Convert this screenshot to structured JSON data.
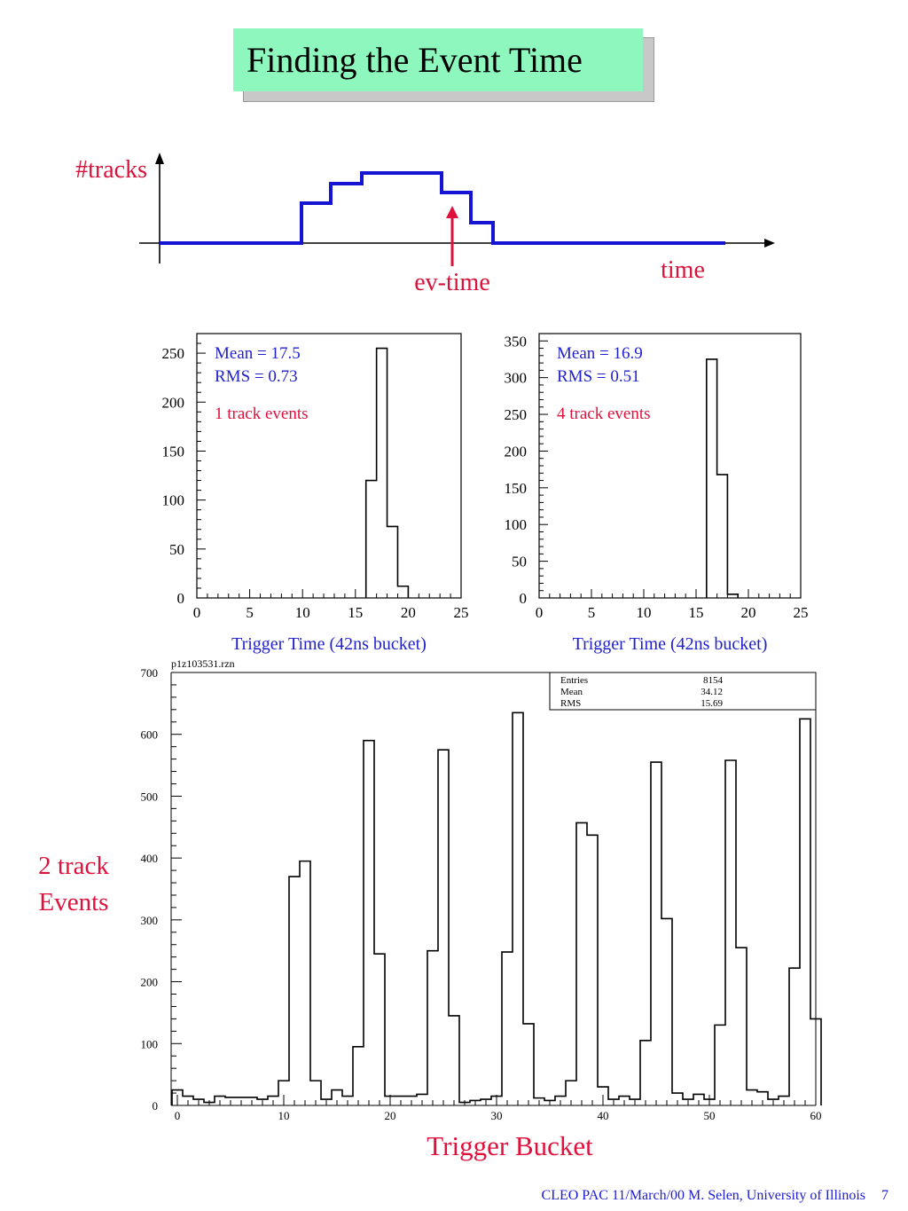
{
  "slide": {
    "title": "Finding the Event Time",
    "title_bg": "#8ef7bd",
    "footer": "CLEO PAC  11/March/00  M. Selen, University of Illinois",
    "page_number": "7"
  },
  "schematic": {
    "y_label": "#tracks",
    "x_label": "time",
    "marker_label": "ev-time",
    "colors": {
      "step": "#1414d2",
      "marker": "#e0103c",
      "label": "#d8123a"
    }
  },
  "chart_data": [
    {
      "type": "bar",
      "xlabel": "Trigger Time (42ns bucket)",
      "ylabel": "",
      "xlim": [
        0,
        25
      ],
      "ylim": [
        0,
        270
      ],
      "x_ticks": [
        0,
        5,
        10,
        15,
        20,
        25
      ],
      "y_ticks": [
        0,
        50,
        100,
        150,
        200,
        250
      ],
      "x": [
        16,
        17,
        18,
        19
      ],
      "values": [
        120,
        255,
        73,
        12
      ],
      "bin_width": 1,
      "annotations": [
        {
          "text": "Mean = 17.5",
          "color": "#1f1fd0"
        },
        {
          "text": "RMS  = 0.73",
          "color": "#1f1fd0"
        },
        {
          "text": "1 track events",
          "color": "#e0103c"
        }
      ]
    },
    {
      "type": "bar",
      "xlabel": "Trigger Time (42ns bucket)",
      "ylabel": "",
      "xlim": [
        0,
        25
      ],
      "ylim": [
        0,
        360
      ],
      "x_ticks": [
        0,
        5,
        10,
        15,
        20,
        25
      ],
      "y_ticks": [
        0,
        50,
        100,
        150,
        200,
        250,
        300,
        350
      ],
      "x": [
        16,
        17,
        18
      ],
      "values": [
        325,
        168,
        5
      ],
      "bin_width": 1,
      "annotations": [
        {
          "text": "Mean = 16.9",
          "color": "#1f1fd0"
        },
        {
          "text": "RMS  = 0.51",
          "color": "#1f1fd0"
        },
        {
          "text": "4 track events",
          "color": "#e0103c"
        }
      ]
    },
    {
      "type": "bar",
      "title": "p1z103531.rzn",
      "xlabel": "Trigger Bucket",
      "ylabel": "2 track Events",
      "xlim": [
        0,
        60
      ],
      "ylim": [
        0,
        700
      ],
      "x_ticks": [
        0,
        10,
        20,
        30,
        40,
        50,
        60
      ],
      "y_ticks": [
        0,
        100,
        200,
        300,
        400,
        500,
        600,
        700
      ],
      "bin_width": 1,
      "x": [
        -0.5,
        0.5,
        1.5,
        2.5,
        3.5,
        4.5,
        5.5,
        6.5,
        7.5,
        8.5,
        9.5,
        10.5,
        11.5,
        12.5,
        13.5,
        14.5,
        15.5,
        16.5,
        17.5,
        18.5,
        19.5,
        20.5,
        21.5,
        22.5,
        23.5,
        24.5,
        25.5,
        26.5,
        27.5,
        28.5,
        29.5,
        30.5,
        31.5,
        32.5,
        33.5,
        34.5,
        35.5,
        36.5,
        37.5,
        38.5,
        39.5,
        40.5,
        41.5,
        42.5,
        43.5,
        44.5,
        45.5,
        46.5,
        47.5,
        48.5,
        49.5,
        50.5,
        51.5,
        52.5,
        53.5,
        54.5,
        55.5,
        56.5,
        57.5,
        58.5,
        59.5
      ],
      "values": [
        25,
        15,
        10,
        5,
        15,
        13,
        13,
        13,
        10,
        15,
        40,
        370,
        395,
        40,
        10,
        25,
        15,
        95,
        590,
        245,
        15,
        15,
        15,
        18,
        250,
        575,
        145,
        5,
        8,
        10,
        15,
        248,
        635,
        132,
        12,
        8,
        15,
        40,
        457,
        437,
        30,
        10,
        15,
        10,
        105,
        555,
        302,
        20,
        10,
        18,
        10,
        130,
        558,
        255,
        25,
        22,
        10,
        15,
        222,
        625,
        140
      ],
      "stats": [
        {
          "label": "Entries",
          "value": "8154"
        },
        {
          "label": "Mean",
          "value": "34.12"
        },
        {
          "label": "RMS",
          "value": "15.69"
        }
      ],
      "colors": {
        "ylabel": "#e0103c",
        "xlabel": "#e0103c"
      }
    }
  ]
}
